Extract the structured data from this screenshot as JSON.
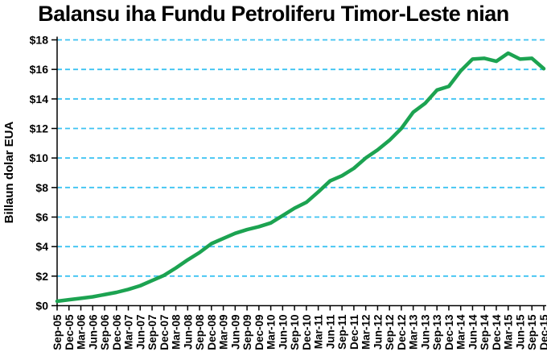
{
  "title": "Balansu iha Fundu Petroliferu Timor-Leste nian",
  "chart_data": {
    "type": "line",
    "title": "Balansu iha Fundu Petroliferu Timor-Leste nian",
    "xlabel": "",
    "ylabel": "Billaun dolar EUA",
    "ylim": [
      0,
      18
    ],
    "ytick_step": 2,
    "ytick_prefix": "$",
    "grid": "horizontal-dashed",
    "legend": "none",
    "line_color": "#1CA351",
    "grid_color": "#3DC3F2",
    "axis_color": "#000000",
    "categories": [
      "Sep-05",
      "Dec-05",
      "Mar-06",
      "Jun-06",
      "Sep-06",
      "Dec-06",
      "Mar-07",
      "Jun-07",
      "Sep-07",
      "Dec-07",
      "Mar-08",
      "Jun-08",
      "Sep-08",
      "Dec-08",
      "Mar-09",
      "Jun-09",
      "Sep-09",
      "Dec-09",
      "Mar-10",
      "Jun-10",
      "Sep-10",
      "Dec-10",
      "Mar-11",
      "Jun-11",
      "Sep-11",
      "Dec-11",
      "Mar-12",
      "Jun-12",
      "Sep-12",
      "Dec-12",
      "Mar-13",
      "Jun-13",
      "Sep-13",
      "Dec-13",
      "Mar-14",
      "Jun-14",
      "Sep-14",
      "Dec-14",
      "Mar-15",
      "Jun-15",
      "Sep-15",
      "Dec-15"
    ],
    "values": [
      0.3,
      0.4,
      0.5,
      0.6,
      0.75,
      0.9,
      1.1,
      1.35,
      1.7,
      2.05,
      2.55,
      3.1,
      3.6,
      4.2,
      4.55,
      4.9,
      5.15,
      5.35,
      5.6,
      6.1,
      6.6,
      7.0,
      7.7,
      8.45,
      8.8,
      9.3,
      10.0,
      10.55,
      11.2,
      12.0,
      13.1,
      13.7,
      14.6,
      14.85,
      15.9,
      16.7,
      16.75,
      16.55,
      17.1,
      16.7,
      16.75,
      16.05
    ]
  }
}
